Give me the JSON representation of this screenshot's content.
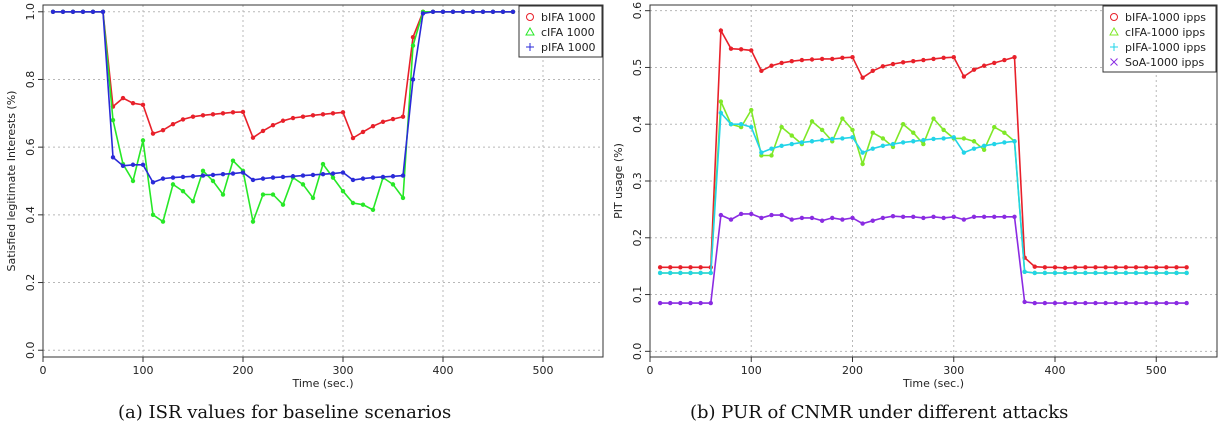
{
  "chart_data": [
    {
      "type": "line",
      "caption": "(a) ISR values for baseline scenarios",
      "xlabel": "Time (sec.)",
      "ylabel": "Satisfied legitimate Interests (%)",
      "xlim": [
        0,
        560
      ],
      "ylim": [
        -0.02,
        1.02
      ],
      "xticks": [
        0,
        100,
        200,
        300,
        400,
        500
      ],
      "yticks": [
        0.0,
        0.2,
        0.4,
        0.6,
        0.8,
        1.0
      ],
      "ytick_labels": [
        "0.0",
        "0.2",
        "0.4",
        "0.6",
        "0.8",
        "1.0"
      ],
      "grid": true,
      "legend_position": "top-right",
      "x": [
        10,
        20,
        30,
        40,
        50,
        60,
        70,
        80,
        90,
        100,
        110,
        120,
        130,
        140,
        150,
        160,
        170,
        180,
        190,
        200,
        210,
        220,
        230,
        240,
        250,
        260,
        270,
        280,
        290,
        300,
        310,
        320,
        330,
        340,
        350,
        360,
        370,
        380,
        390,
        400,
        410,
        420,
        430,
        440,
        450,
        460,
        470
      ],
      "series": [
        {
          "name": "bIFA 1000",
          "color": "#e8202a",
          "marker": "circle",
          "values": [
            1,
            1,
            1,
            1,
            1,
            1,
            0.72,
            0.745,
            0.73,
            0.725,
            0.64,
            0.65,
            0.668,
            0.682,
            0.69,
            0.694,
            0.697,
            0.7,
            0.703,
            0.704,
            0.628,
            0.648,
            0.665,
            0.678,
            0.686,
            0.69,
            0.694,
            0.697,
            0.7,
            0.703,
            0.627,
            0.645,
            0.662,
            0.675,
            0.683,
            0.69,
            0.925,
            1,
            1,
            1,
            1,
            1,
            1,
            1,
            1,
            1,
            1
          ]
        },
        {
          "name": "cIFA 1000",
          "color": "#27e827",
          "marker": "triangle",
          "values": [
            1,
            1,
            1,
            1,
            1,
            1,
            0.68,
            0.55,
            0.5,
            0.62,
            0.4,
            0.38,
            0.49,
            0.47,
            0.44,
            0.53,
            0.5,
            0.46,
            0.56,
            0.53,
            0.38,
            0.46,
            0.46,
            0.43,
            0.51,
            0.49,
            0.45,
            0.55,
            0.51,
            0.47,
            0.435,
            0.43,
            0.415,
            0.51,
            0.49,
            0.45,
            0.9,
            1,
            1,
            1,
            1,
            1,
            1,
            1,
            1,
            1,
            1
          ]
        },
        {
          "name": "pIFA 1000",
          "color": "#2a2ad8",
          "marker": "plus",
          "values": [
            1,
            1,
            1,
            1,
            1,
            1,
            0.57,
            0.545,
            0.548,
            0.548,
            0.496,
            0.507,
            0.51,
            0.512,
            0.514,
            0.516,
            0.518,
            0.52,
            0.522,
            0.525,
            0.503,
            0.507,
            0.51,
            0.512,
            0.514,
            0.516,
            0.518,
            0.52,
            0.522,
            0.525,
            0.503,
            0.507,
            0.51,
            0.512,
            0.514,
            0.516,
            0.8,
            0.995,
            1,
            1,
            1,
            1,
            1,
            1,
            1,
            1,
            1
          ]
        }
      ]
    },
    {
      "type": "line",
      "caption": "(b) PUR of CNMR under different attacks",
      "xlabel": "Time (sec.)",
      "ylabel": "PIT usage (%)",
      "xlim": [
        0,
        560
      ],
      "ylim": [
        -0.01,
        0.61
      ],
      "xticks": [
        0,
        100,
        200,
        300,
        400,
        500
      ],
      "yticks": [
        0.0,
        0.1,
        0.2,
        0.3,
        0.4,
        0.5,
        0.6
      ],
      "ytick_labels": [
        "0.0",
        "0.1",
        "0.2",
        "0.3",
        "0.4",
        "0.5",
        "0.6"
      ],
      "grid": true,
      "legend_position": "top-right",
      "x": [
        10,
        20,
        30,
        40,
        50,
        60,
        70,
        80,
        90,
        100,
        110,
        120,
        130,
        140,
        150,
        160,
        170,
        180,
        190,
        200,
        210,
        220,
        230,
        240,
        250,
        260,
        270,
        280,
        290,
        300,
        310,
        320,
        330,
        340,
        350,
        360,
        370,
        380,
        390,
        400,
        410,
        420,
        430,
        440,
        450,
        460,
        470,
        480,
        490,
        500,
        510,
        520,
        530
      ],
      "series": [
        {
          "name": "bIFA-1000 ipps",
          "color": "#e8202a",
          "marker": "circle",
          "values": [
            0.148,
            0.148,
            0.148,
            0.148,
            0.148,
            0.148,
            0.565,
            0.533,
            0.532,
            0.53,
            0.494,
            0.503,
            0.508,
            0.511,
            0.513,
            0.514,
            0.515,
            0.515,
            0.517,
            0.518,
            0.482,
            0.494,
            0.502,
            0.506,
            0.509,
            0.511,
            0.513,
            0.515,
            0.517,
            0.518,
            0.484,
            0.496,
            0.503,
            0.508,
            0.513,
            0.518,
            0.165,
            0.149,
            0.148,
            0.148,
            0.147,
            0.148,
            0.148,
            0.148,
            0.148,
            0.148,
            0.148,
            0.148,
            0.148,
            0.148,
            0.148,
            0.148,
            0.148
          ]
        },
        {
          "name": "cIFA-1000 ipps",
          "color": "#7fe827",
          "marker": "triangle",
          "values": [
            0.138,
            0.138,
            0.138,
            0.138,
            0.138,
            0.138,
            0.44,
            0.4,
            0.395,
            0.425,
            0.345,
            0.345,
            0.395,
            0.38,
            0.365,
            0.405,
            0.39,
            0.37,
            0.41,
            0.39,
            0.33,
            0.385,
            0.375,
            0.36,
            0.4,
            0.385,
            0.365,
            0.41,
            0.39,
            0.375,
            0.375,
            0.37,
            0.355,
            0.395,
            0.385,
            0.37,
            0.14,
            0.138,
            0.138,
            0.138,
            0.138,
            0.138,
            0.138,
            0.138,
            0.138,
            0.138,
            0.138,
            0.138,
            0.138,
            0.138,
            0.138,
            0.138,
            0.138
          ]
        },
        {
          "name": "pIFA-1000 ipps",
          "color": "#22d4e8",
          "marker": "plus",
          "values": [
            0.138,
            0.138,
            0.138,
            0.138,
            0.138,
            0.138,
            0.42,
            0.4,
            0.4,
            0.395,
            0.35,
            0.357,
            0.362,
            0.365,
            0.368,
            0.37,
            0.372,
            0.374,
            0.375,
            0.377,
            0.35,
            0.357,
            0.362,
            0.365,
            0.368,
            0.37,
            0.372,
            0.374,
            0.375,
            0.377,
            0.35,
            0.357,
            0.362,
            0.365,
            0.368,
            0.37,
            0.14,
            0.138,
            0.138,
            0.138,
            0.138,
            0.138,
            0.138,
            0.138,
            0.138,
            0.138,
            0.138,
            0.138,
            0.138,
            0.138,
            0.138,
            0.138,
            0.138
          ]
        },
        {
          "name": "SoA-1000 ipps",
          "color": "#8a2be2",
          "marker": "cross",
          "values": [
            0.085,
            0.085,
            0.085,
            0.085,
            0.085,
            0.085,
            0.24,
            0.232,
            0.242,
            0.242,
            0.235,
            0.24,
            0.24,
            0.232,
            0.235,
            0.235,
            0.23,
            0.235,
            0.232,
            0.235,
            0.225,
            0.23,
            0.235,
            0.238,
            0.237,
            0.237,
            0.235,
            0.237,
            0.235,
            0.237,
            0.232,
            0.237,
            0.237,
            0.237,
            0.237,
            0.237,
            0.087,
            0.085,
            0.085,
            0.085,
            0.085,
            0.085,
            0.085,
            0.085,
            0.085,
            0.085,
            0.085,
            0.085,
            0.085,
            0.085,
            0.085,
            0.085,
            0.085
          ]
        }
      ]
    }
  ]
}
